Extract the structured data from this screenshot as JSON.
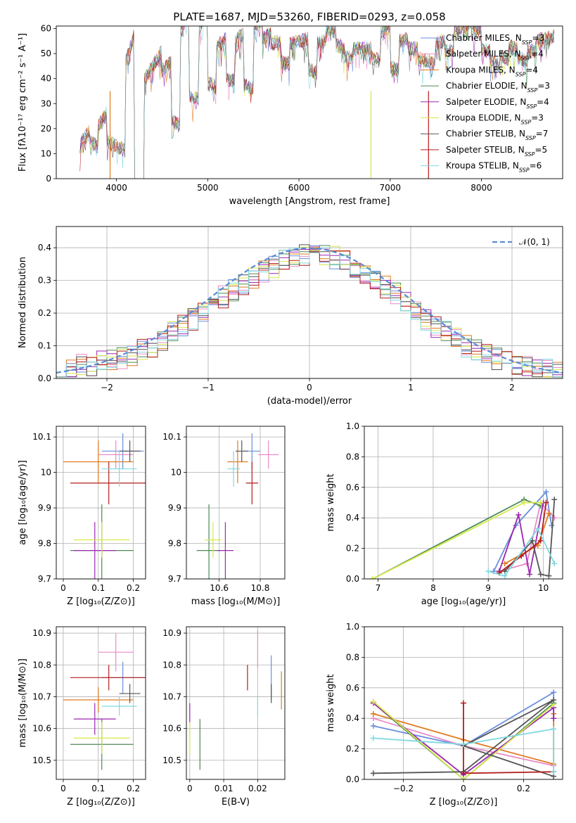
{
  "figure": {
    "title": "PLATE=1687, MJD=53260, FIBERID=0293, z=0.058",
    "legend": [
      {
        "label": "Chabrier MILES, N",
        "sub": "SSP",
        "n": "=3",
        "color": "#6a8fdc"
      },
      {
        "label": "Salpeter MILES, N",
        "sub": "SSP",
        "n": "=4",
        "color": "#e88cc8"
      },
      {
        "label": "Kroupa MILES, N",
        "sub": "SSP",
        "n": "=4",
        "color": "#e07a1f"
      },
      {
        "label": "Chabrier ELODIE, N",
        "sub": "SSP",
        "n": "=3",
        "color": "#4c8a55"
      },
      {
        "label": "Salpeter ELODIE, N",
        "sub": "SSP",
        "n": "=4",
        "color": "#9c27b0"
      },
      {
        "label": "Kroupa ELODIE, N",
        "sub": "SSP",
        "n": "=3",
        "color": "#d6e84a"
      },
      {
        "label": "Chabrier STELIB, N",
        "sub": "SSP",
        "n": "=7",
        "color": "#555555"
      },
      {
        "label": "Salpeter STELIB, N",
        "sub": "SSP",
        "n": "=5",
        "color": "#b51c1c"
      },
      {
        "label": "Kroupa STELIB, N",
        "sub": "SSP",
        "n": "=6",
        "color": "#7fd8e0"
      }
    ]
  },
  "chart_data": [
    {
      "type": "line",
      "xlabel": "wavelength [Angstrom, rest frame]",
      "ylabel": "Flux [fλ10⁻¹⁷ erg cm⁻² s⁻¹ A⁻¹]",
      "xlim": [
        3340,
        8890
      ],
      "ylim": [
        0,
        61
      ],
      "xticks": [
        4000,
        5000,
        6000,
        7000,
        8000
      ],
      "yticks": [
        0,
        10,
        20,
        30,
        40,
        50,
        60
      ],
      "x": [
        3600,
        3650,
        3700,
        3750,
        3800,
        3850,
        3900,
        3950,
        4000,
        4100,
        4200,
        4300,
        4400,
        4500,
        4600,
        4700,
        4800,
        4900,
        5000,
        5100,
        5200,
        5300,
        5400,
        5500,
        5600,
        5700,
        5800,
        5900,
        6000,
        6100,
        6200,
        6300,
        6400,
        6500,
        6600,
        6700,
        6800,
        6900,
        7000,
        7100,
        7200,
        7300,
        7400,
        7500,
        7600,
        7700,
        7800,
        7900,
        8000,
        8100,
        8200,
        8300,
        8400,
        8500,
        8600,
        8700,
        8800
      ],
      "values": [
        13,
        16,
        15,
        18,
        17,
        16,
        22,
        18,
        21,
        27,
        31,
        29,
        37,
        36,
        42,
        41,
        44,
        43,
        46,
        44,
        48,
        50,
        51,
        50,
        51,
        52,
        50,
        51,
        53,
        53,
        52,
        52,
        52,
        51,
        53,
        51,
        52,
        52,
        51,
        50,
        51,
        51,
        53,
        55,
        56,
        55,
        53,
        52,
        52,
        51,
        51,
        52,
        53,
        54,
        55,
        54,
        55
      ]
    },
    {
      "type": "bar",
      "xlabel": "(data-model)/error",
      "ylabel": "Normed distribution",
      "xlim": [
        -2.5,
        2.5
      ],
      "ylim": [
        0,
        0.465
      ],
      "xticks": [
        -2,
        -1,
        0,
        1,
        2
      ],
      "yticks": [
        0.0,
        0.1,
        0.2,
        0.3,
        0.4
      ],
      "legend": "𝒩(0, 1)",
      "bin_width": 0.1,
      "bins_start": -2.5,
      "values": [
        0.03,
        0.03,
        0.04,
        0.04,
        0.05,
        0.06,
        0.06,
        0.07,
        0.09,
        0.1,
        0.12,
        0.14,
        0.16,
        0.18,
        0.2,
        0.22,
        0.25,
        0.27,
        0.29,
        0.31,
        0.33,
        0.34,
        0.36,
        0.37,
        0.38,
        0.39,
        0.38,
        0.37,
        0.36,
        0.34,
        0.32,
        0.3,
        0.28,
        0.26,
        0.23,
        0.2,
        0.18,
        0.16,
        0.14,
        0.12,
        0.1,
        0.09,
        0.07,
        0.06,
        0.05,
        0.04,
        0.04,
        0.03,
        0.03,
        0.02
      ]
    },
    {
      "type": "scatter",
      "xlabel": "Z [log₁₀(Z/Z⊙)]",
      "ylabel": "age  [log₁₀(age/yr)]",
      "xlim": [
        -0.02,
        0.235
      ],
      "ylim": [
        9.7,
        10.13
      ],
      "xticks": [
        0.0,
        0.1,
        0.2
      ],
      "yticks": [
        9.7,
        9.8,
        9.9,
        10.0,
        10.1
      ],
      "series": [
        {
          "color": "#6a8fdc",
          "x": 0.17,
          "y": 10.06,
          "xerr": 0.06,
          "yerr": 0.05
        },
        {
          "color": "#e88cc8",
          "x": 0.15,
          "y": 10.05,
          "xerr": 0.05,
          "yerr": 0.04
        },
        {
          "color": "#e07a1f",
          "x": 0.1,
          "y": 10.03,
          "xerr": 0.1,
          "yerr": 0.06
        },
        {
          "color": "#4c8a55",
          "x": 0.11,
          "y": 9.78,
          "xerr": 0.09,
          "yerr": 0.13
        },
        {
          "color": "#9c27b0",
          "x": 0.09,
          "y": 9.78,
          "xerr": 0.06,
          "yerr": 0.08
        },
        {
          "color": "#d6e84a",
          "x": 0.11,
          "y": 9.81,
          "xerr": 0.08,
          "yerr": 0.05
        },
        {
          "color": "#555555",
          "x": 0.19,
          "y": 10.06,
          "xerr": 0.03,
          "yerr": 0.03
        },
        {
          "color": "#b51c1c",
          "x": 0.13,
          "y": 9.97,
          "xerr": 0.11,
          "yerr": 0.06
        },
        {
          "color": "#7fd8e0",
          "x": 0.16,
          "y": 10.01,
          "xerr": 0.05,
          "yerr": 0.05
        }
      ]
    },
    {
      "type": "scatter",
      "xlabel": "mass [log₁₀(M/M⊙)]",
      "ylabel": "",
      "xlim": [
        10.44,
        10.92
      ],
      "ylim": [
        9.7,
        10.13
      ],
      "xticks": [
        10.6,
        10.8
      ],
      "yticks": [
        9.7,
        9.8,
        9.9,
        10.0,
        10.1
      ],
      "series": [
        {
          "color": "#6a8fdc",
          "x": 10.76,
          "y": 10.06,
          "xerr": 0.04,
          "yerr": 0.05
        },
        {
          "color": "#e88cc8",
          "x": 10.84,
          "y": 10.05,
          "xerr": 0.05,
          "yerr": 0.04
        },
        {
          "color": "#e07a1f",
          "x": 10.69,
          "y": 10.03,
          "xerr": 0.05,
          "yerr": 0.06
        },
        {
          "color": "#4c8a55",
          "x": 10.55,
          "y": 9.78,
          "xerr": 0.06,
          "yerr": 0.13
        },
        {
          "color": "#9c27b0",
          "x": 10.63,
          "y": 9.78,
          "xerr": 0.04,
          "yerr": 0.08
        },
        {
          "color": "#d6e84a",
          "x": 10.57,
          "y": 9.81,
          "xerr": 0.04,
          "yerr": 0.05
        },
        {
          "color": "#555555",
          "x": 10.71,
          "y": 10.06,
          "xerr": 0.03,
          "yerr": 0.03
        },
        {
          "color": "#b51c1c",
          "x": 10.76,
          "y": 9.97,
          "xerr": 0.03,
          "yerr": 0.06
        },
        {
          "color": "#7fd8e0",
          "x": 10.67,
          "y": 10.01,
          "xerr": 0.03,
          "yerr": 0.05
        }
      ]
    },
    {
      "type": "line",
      "xlabel": "age  [log₁₀(age/yr)]",
      "ylabel": "mass weight",
      "xlim": [
        6.75,
        10.35
      ],
      "ylim": [
        0,
        1
      ],
      "xticks": [
        7,
        8,
        9,
        10
      ],
      "yticks": [
        0.0,
        0.2,
        0.4,
        0.6,
        0.8,
        1.0
      ],
      "series": [
        {
          "color": "#6a8fdc",
          "x": [
            9.1,
            9.5,
            10.05,
            10.15
          ],
          "y": [
            0.05,
            0.35,
            0.57,
            0.35
          ]
        },
        {
          "color": "#e88cc8",
          "x": [
            9.2,
            9.7,
            9.95,
            10.2
          ],
          "y": [
            0.05,
            0.1,
            0.5,
            0.4
          ]
        },
        {
          "color": "#e07a1f",
          "x": [
            9.3,
            9.9,
            10.1
          ],
          "y": [
            0.1,
            0.22,
            0.43
          ]
        },
        {
          "color": "#4c8a55",
          "x": [
            6.9,
            9.65,
            9.95
          ],
          "y": [
            0.0,
            0.52,
            0.48
          ]
        },
        {
          "color": "#9c27b0",
          "x": [
            9.2,
            9.55,
            9.75,
            10.0
          ],
          "y": [
            0.05,
            0.42,
            0.03,
            0.5
          ]
        },
        {
          "color": "#d6e84a",
          "x": [
            6.9,
            9.65,
            9.95
          ],
          "y": [
            0.0,
            0.5,
            0.5
          ]
        },
        {
          "color": "#555555",
          "x": [
            9.3,
            9.8,
            9.95,
            10.1,
            10.2
          ],
          "y": [
            0.05,
            0.25,
            0.03,
            0.02,
            0.52
          ]
        },
        {
          "color": "#b51c1c",
          "x": [
            9.2,
            9.6,
            9.95,
            10.05
          ],
          "y": [
            0.04,
            0.15,
            0.25,
            0.5
          ]
        },
        {
          "color": "#7fd8e0",
          "x": [
            9.0,
            9.3,
            9.9,
            10.2
          ],
          "y": [
            0.05,
            0.02,
            0.33,
            0.1
          ]
        }
      ]
    },
    {
      "type": "scatter",
      "xlabel": "Z [log₁₀(Z/Z⊙)]",
      "ylabel": "mass [log₁₀(M/M⊙)]",
      "xlim": [
        -0.02,
        0.235
      ],
      "ylim": [
        10.44,
        10.92
      ],
      "xticks": [
        0.0,
        0.1,
        0.2
      ],
      "yticks": [
        10.5,
        10.6,
        10.7,
        10.8,
        10.9
      ],
      "series": [
        {
          "color": "#6a8fdc",
          "x": 0.17,
          "y": 10.76,
          "xerr": 0.06,
          "yerr": 0.05
        },
        {
          "color": "#e88cc8",
          "x": 0.15,
          "y": 10.84,
          "xerr": 0.05,
          "yerr": 0.06
        },
        {
          "color": "#e07a1f",
          "x": 0.1,
          "y": 10.69,
          "xerr": 0.1,
          "yerr": 0.04
        },
        {
          "color": "#4c8a55",
          "x": 0.11,
          "y": 10.55,
          "xerr": 0.09,
          "yerr": 0.08
        },
        {
          "color": "#9c27b0",
          "x": 0.09,
          "y": 10.63,
          "xerr": 0.06,
          "yerr": 0.05
        },
        {
          "color": "#d6e84a",
          "x": 0.11,
          "y": 10.57,
          "xerr": 0.08,
          "yerr": 0.05
        },
        {
          "color": "#555555",
          "x": 0.19,
          "y": 10.71,
          "xerr": 0.03,
          "yerr": 0.03
        },
        {
          "color": "#b51c1c",
          "x": 0.13,
          "y": 10.76,
          "xerr": 0.11,
          "yerr": 0.04
        },
        {
          "color": "#7fd8e0",
          "x": 0.16,
          "y": 10.67,
          "xerr": 0.05,
          "yerr": 0.03
        }
      ]
    },
    {
      "type": "scatter",
      "xlabel": "E(B-V)",
      "ylabel": "",
      "xlim": [
        -0.001,
        0.028
      ],
      "ylim": [
        10.44,
        10.92
      ],
      "xticks": [
        0.0,
        0.01,
        0.02
      ],
      "yticks": [
        10.5,
        10.6,
        10.7,
        10.8,
        10.9
      ],
      "series": [
        {
          "color": "#6a8fdc",
          "x": 0.024,
          "y": 10.76,
          "yerr": 0.07
        },
        {
          "color": "#e88cc8",
          "x": 0.02,
          "y": 10.85,
          "yerr": 0.06
        },
        {
          "color": "#e07a1f",
          "x": 0.027,
          "y": 10.72,
          "yerr": 0.06
        },
        {
          "color": "#4c8a55",
          "x": 0.003,
          "y": 10.55,
          "yerr": 0.08
        },
        {
          "color": "#9c27b0",
          "x": 0.0,
          "y": 10.65,
          "yerr": 0.03
        },
        {
          "color": "#d6e84a",
          "x": 0.0,
          "y": 10.57,
          "yerr": 0.05
        },
        {
          "color": "#555555",
          "x": 0.024,
          "y": 10.71,
          "yerr": 0.03
        },
        {
          "color": "#b51c1c",
          "x": 0.017,
          "y": 10.76,
          "yerr": 0.04
        },
        {
          "color": "#7fd8e0",
          "x": 0.02,
          "y": 10.67,
          "yerr": 0.03
        }
      ]
    },
    {
      "type": "line",
      "xlabel": "Z [log₁₀(Z/Z⊙)]",
      "ylabel": "mass weight",
      "xlim": [
        -0.33,
        0.33
      ],
      "ylim": [
        0,
        1
      ],
      "xticks": [
        -0.2,
        0.0,
        0.2
      ],
      "yticks": [
        0.0,
        0.2,
        0.4,
        0.6,
        0.8,
        1.0
      ],
      "series": [
        {
          "color": "#6a8fdc",
          "x": [
            -0.3,
            0.0,
            0.3,
            0.3
          ],
          "y": [
            0.35,
            0.22,
            0.57,
            0.4
          ]
        },
        {
          "color": "#e88cc8",
          "x": [
            -0.3,
            0.0,
            0.3
          ],
          "y": [
            0.4,
            0.22,
            0.09
          ]
        },
        {
          "color": "#e07a1f",
          "x": [
            -0.3,
            0.0,
            0.3,
            0.3
          ],
          "y": [
            0.43,
            0.26,
            0.1,
            0.43
          ]
        },
        {
          "color": "#4c8a55",
          "x": [
            -0.3,
            0.0,
            0.3
          ],
          "y": [
            0.5,
            0.0,
            0.5
          ]
        },
        {
          "color": "#9c27b0",
          "x": [
            -0.3,
            0.0,
            0.3,
            0.3
          ],
          "y": [
            0.5,
            0.03,
            0.47,
            0.4
          ]
        },
        {
          "color": "#d6e84a",
          "x": [
            -0.3,
            0.0,
            0.3
          ],
          "y": [
            0.51,
            0.0,
            0.49
          ]
        },
        {
          "color": "#555555",
          "x": [
            -0.3,
            0.0,
            0.3,
            0.0,
            0.3
          ],
          "y": [
            0.04,
            0.05,
            0.52,
            0.22,
            0.02
          ]
        },
        {
          "color": "#b51c1c",
          "x": [
            0.0,
            0.0,
            0.3
          ],
          "y": [
            0.5,
            0.04,
            0.05
          ]
        },
        {
          "color": "#7fd8e0",
          "x": [
            -0.3,
            0.0,
            0.3,
            0.3
          ],
          "y": [
            0.27,
            0.23,
            0.33,
            0.05
          ]
        }
      ]
    }
  ]
}
